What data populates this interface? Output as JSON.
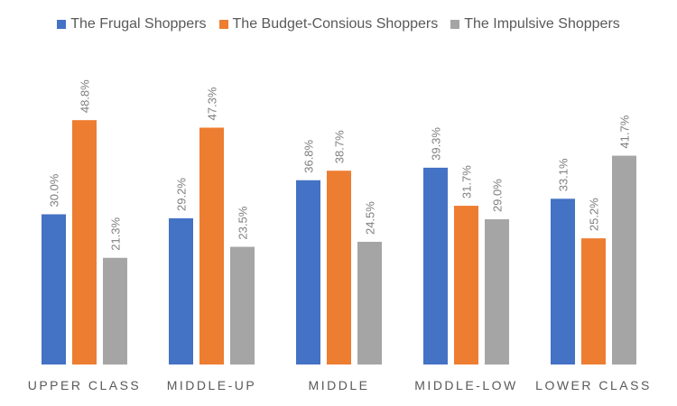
{
  "chart_data": {
    "type": "bar",
    "title": "",
    "xlabel": "",
    "ylabel": "",
    "ylim": [
      0,
      50
    ],
    "grid": false,
    "legend_position": "top",
    "categories": [
      "UPPER CLASS",
      "MIDDLE-UP",
      "MIDDLE",
      "MIDDLE-LOW",
      "LOWER CLASS"
    ],
    "series": [
      {
        "name": "The Frugal Shoppers",
        "color": "#4472c4",
        "values": [
          30.0,
          29.2,
          36.8,
          39.3,
          33.1
        ],
        "labels": [
          "30.0%",
          "29.2%",
          "36.8%",
          "39.3%",
          "33.1%"
        ]
      },
      {
        "name": "The Budget-Consious Shoppers",
        "color": "#ed7d31",
        "values": [
          48.8,
          47.3,
          38.7,
          31.7,
          25.2
        ],
        "labels": [
          "48.8%",
          "47.3%",
          "38.7%",
          "31.7%",
          "25.2%"
        ]
      },
      {
        "name": "The Impulsive Shoppers",
        "color": "#a5a5a5",
        "values": [
          21.3,
          23.5,
          24.5,
          29.0,
          41.7
        ],
        "labels": [
          "21.3%",
          "23.5%",
          "24.5%",
          "29.0%",
          "41.7%"
        ]
      }
    ]
  }
}
